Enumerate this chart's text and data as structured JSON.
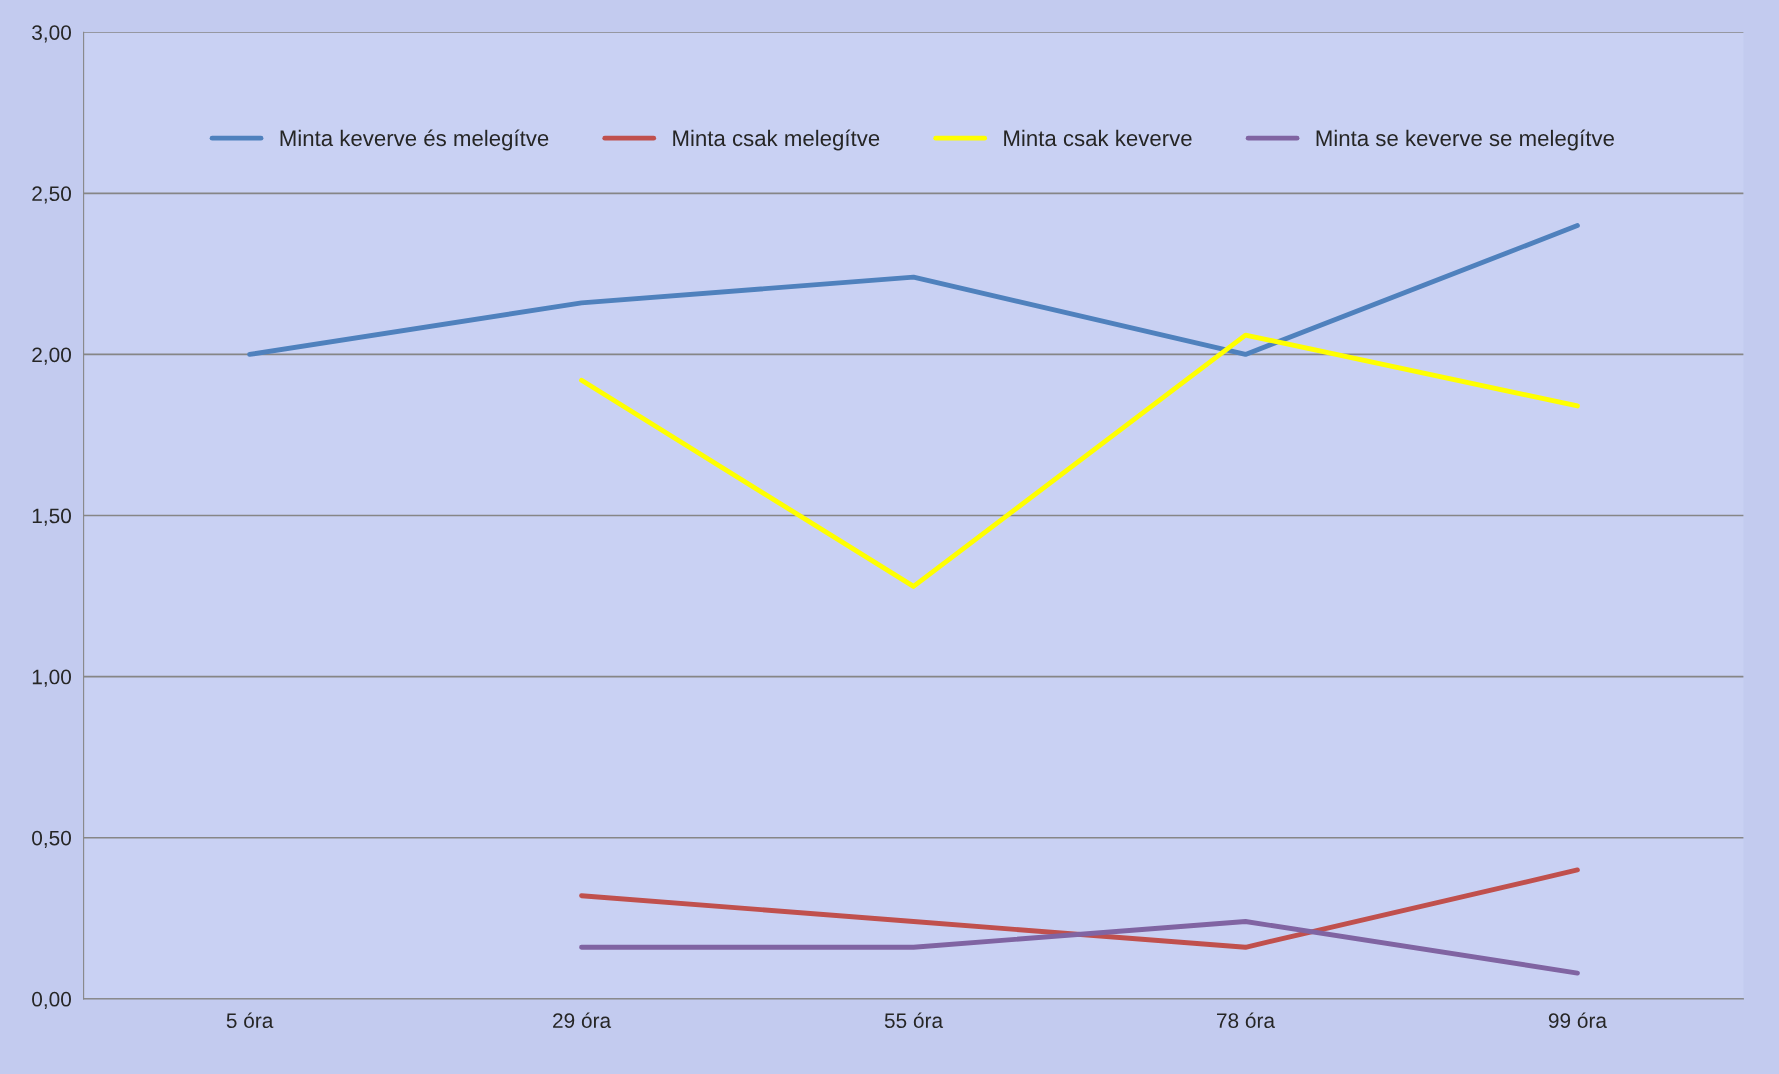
{
  "chart_data": {
    "type": "line",
    "categories": [
      "5 óra",
      "29 óra",
      "55 óra",
      "78 óra",
      "99 óra"
    ],
    "series": [
      {
        "name": "Minta keverve és melegítve",
        "color": "#4f81bd",
        "values": [
          2.0,
          2.16,
          2.24,
          2.0,
          2.4
        ]
      },
      {
        "name": "Minta csak melegítve",
        "color": "#c0504d",
        "values": [
          null,
          0.32,
          0.24,
          0.16,
          0.4
        ]
      },
      {
        "name": "Minta csak keverve",
        "color": "#ffff00",
        "values": [
          null,
          1.92,
          1.28,
          2.06,
          1.84
        ]
      },
      {
        "name": "Minta se keverve se melegítve",
        "color": "#8064a2",
        "values": [
          null,
          0.16,
          0.16,
          0.24,
          0.08
        ]
      }
    ],
    "ylim": [
      0,
      3
    ],
    "yticks": [
      {
        "value": 0,
        "label": "0,00"
      },
      {
        "value": 0.5,
        "label": "0,50"
      },
      {
        "value": 1,
        "label": "1,00"
      },
      {
        "value": 1.5,
        "label": "1,50"
      },
      {
        "value": 2,
        "label": "2,00"
      },
      {
        "value": 2.5,
        "label": "2,50"
      },
      {
        "value": 3,
        "label": "3,00"
      }
    ],
    "grid": "y",
    "legend": "top",
    "marker": "none",
    "line_style": "solid"
  }
}
